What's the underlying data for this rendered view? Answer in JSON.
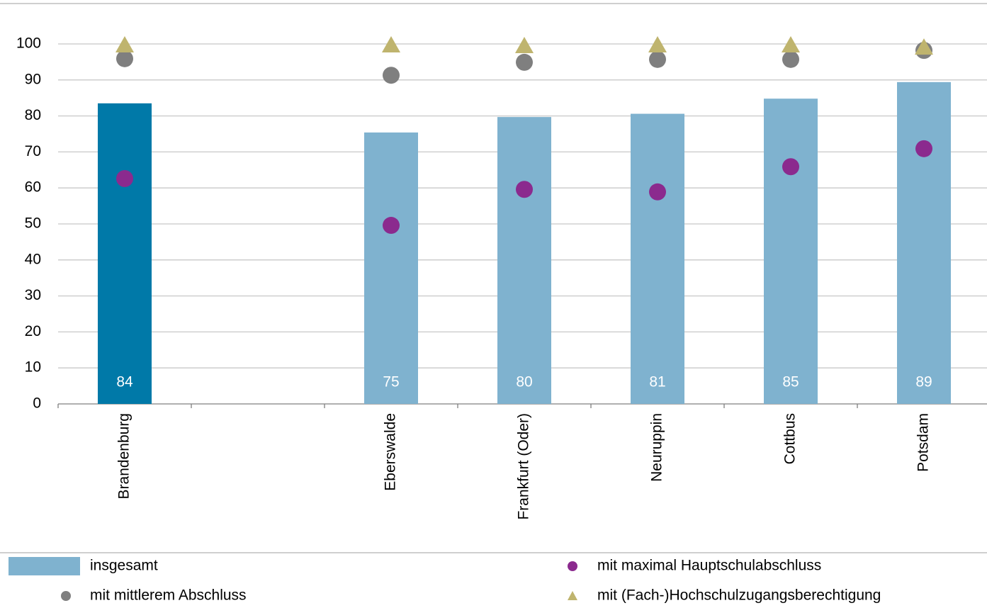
{
  "chart_data": {
    "type": "bar",
    "categories": [
      "Brandenburg",
      null,
      "Eberswalde",
      "Frankfurt (Oder)",
      "Neuruppin",
      "Cottbus",
      "Potsdam"
    ],
    "series": [
      {
        "name": "insgesamt",
        "marker": "bar",
        "color": "#7fb2cf",
        "colors": [
          "#0079a8",
          null,
          "#7fb2cf",
          "#7fb2cf",
          "#7fb2cf",
          "#7fb2cf",
          "#7fb2cf"
        ],
        "values": [
          83.5,
          null,
          75.4,
          79.7,
          80.6,
          84.8,
          89.4
        ],
        "value_labels": [
          "84",
          null,
          "75",
          "80",
          "81",
          "85",
          "89"
        ]
      },
      {
        "name": "mit maximal Hauptschulabschluss",
        "marker": "circle",
        "color": "#8b2a8e",
        "values": [
          62.6,
          null,
          49.6,
          59.6,
          58.9,
          65.9,
          70.9
        ]
      },
      {
        "name": "mit mittlerem Abschluss",
        "marker": "circle",
        "color": "#7f7f7f",
        "values": [
          95.9,
          null,
          91.3,
          94.9,
          95.7,
          95.7,
          98.2
        ]
      },
      {
        "name": "mit (Fach-)Hochschulzugangsberechtigung",
        "marker": "triangle",
        "color": "#bfb46e",
        "values": [
          99.6,
          null,
          99.6,
          99.4,
          99.6,
          99.6,
          99.0
        ]
      }
    ],
    "ylim": [
      0,
      100
    ],
    "yticks": [
      0,
      10,
      20,
      30,
      40,
      50,
      60,
      70,
      80,
      90,
      100
    ],
    "grid": true
  }
}
